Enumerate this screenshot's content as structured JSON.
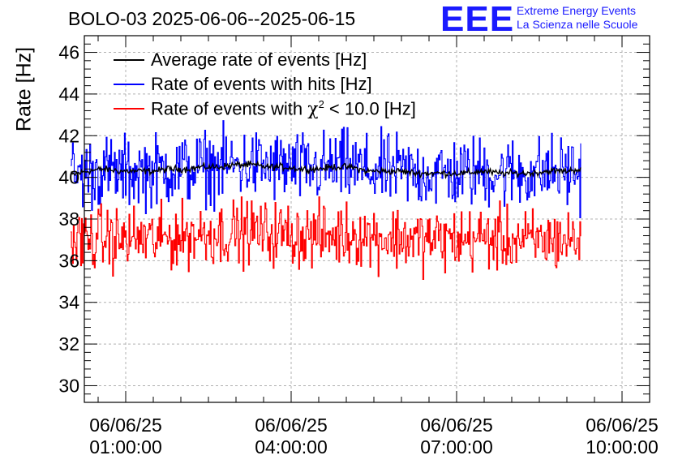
{
  "title": "BOLO-03 2025-06-06--2025-06-15",
  "logo": {
    "mark": "EEE",
    "line1": "Extreme Energy Events",
    "line2": "La Scienza nelle Scuole",
    "color": "#1a1aff"
  },
  "chart_data": {
    "type": "line",
    "ylabel": "Rate [Hz]",
    "xlabel": "",
    "ylim": [
      29.2,
      46.8
    ],
    "yticks": [
      30,
      32,
      34,
      36,
      38,
      40,
      42,
      44,
      46
    ],
    "xlim": [
      "2025-06-06 00:15:00",
      "2025-06-06 10:30:00"
    ],
    "xticks": [
      {
        "date": "06/06/25",
        "time": "01:00:00",
        "hour": 1
      },
      {
        "date": "06/06/25",
        "time": "04:00:00",
        "hour": 4
      },
      {
        "date": "06/06/25",
        "time": "07:00:00",
        "hour": 7
      },
      {
        "date": "06/06/25",
        "time": "10:00:00",
        "hour": 10
      }
    ],
    "grid": true,
    "legend_position": "top-left",
    "x_start": "2025-06-06 00:00:00",
    "x_end": "2025-06-06 09:15:00",
    "series": [
      {
        "name": "Average rate of events [Hz]",
        "color": "#000000",
        "noise": 0.08,
        "values": [
          40.1,
          40.3,
          40.4,
          40.3,
          40.3,
          40.3,
          40.4,
          40.4,
          40.5,
          40.5,
          40.6,
          40.6,
          40.5,
          40.5,
          40.4,
          40.4,
          40.5,
          40.5,
          40.3,
          40.3,
          40.3,
          40.2,
          40.2,
          40.2,
          40.2,
          40.3,
          40.2,
          40.2,
          40.2,
          40.3,
          40.3,
          40.4
        ]
      },
      {
        "name": "Rate of events with hits [Hz]",
        "color": "#0000ff",
        "noise": 0.85,
        "values": [
          40.1,
          40.2,
          40.3,
          40.2,
          40.3,
          40.3,
          40.4,
          40.4,
          40.5,
          40.5,
          40.6,
          40.6,
          40.5,
          40.5,
          40.4,
          40.4,
          40.5,
          40.5,
          40.3,
          40.3,
          40.3,
          40.2,
          40.2,
          40.2,
          40.2,
          40.3,
          40.2,
          40.2,
          40.2,
          40.3,
          40.3,
          40.2
        ]
      },
      {
        "name": "Rate of events with χ2 < 10.0 [Hz]",
        "label_main": "Rate of events with ",
        "label_sym": "χ",
        "label_sup": "2",
        "label_tail": " < 10.0 [Hz]",
        "color": "#ff0000",
        "noise": 0.75,
        "values": [
          37.0,
          37.0,
          37.1,
          37.0,
          37.1,
          37.0,
          37.1,
          37.2,
          37.3,
          37.3,
          37.4,
          37.4,
          37.3,
          37.3,
          37.2,
          37.2,
          37.2,
          37.3,
          37.2,
          37.1,
          37.1,
          37.0,
          37.0,
          37.0,
          37.0,
          37.1,
          37.0,
          37.0,
          36.9,
          37.0,
          37.0,
          37.0
        ]
      }
    ]
  }
}
